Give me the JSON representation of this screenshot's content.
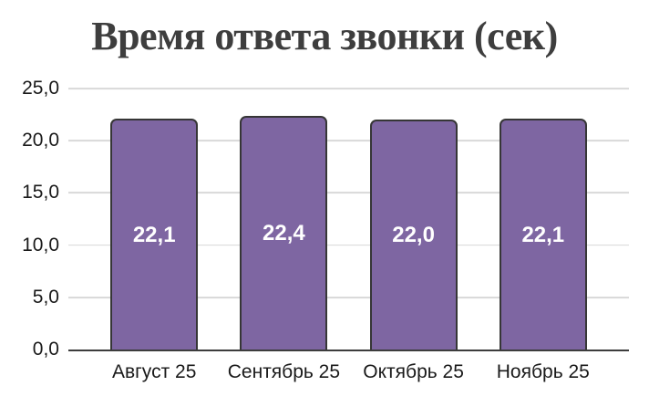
{
  "title": "Время ответа звонки (сек)",
  "chart_data": {
    "type": "bar",
    "title": "Время ответа звонки (сек)",
    "categories": [
      "Август 25",
      "Сентябрь 25",
      "Октябрь 25",
      "Ноябрь 25"
    ],
    "values": [
      22.1,
      22.4,
      22.0,
      22.1
    ],
    "value_labels": [
      "22,1",
      "22,4",
      "22,0",
      "22,1"
    ],
    "xlabel": "",
    "ylabel": "",
    "ylim": [
      0,
      25
    ],
    "ytick_values": [
      25,
      20,
      15,
      10,
      5,
      0
    ],
    "ytick_labels": [
      "25,0",
      "20,0",
      "15,0",
      "10,0",
      "5,0",
      "0,0"
    ],
    "grid": "horizontal",
    "legend": "none",
    "bar_color": "#7E66A2",
    "bar_border_color": "#363636",
    "value_label_color": "#FFFFFF",
    "gridline_color": "#D9D9D9",
    "axis_color": "#3D3D3D",
    "title_color": "#3E3E3E"
  }
}
